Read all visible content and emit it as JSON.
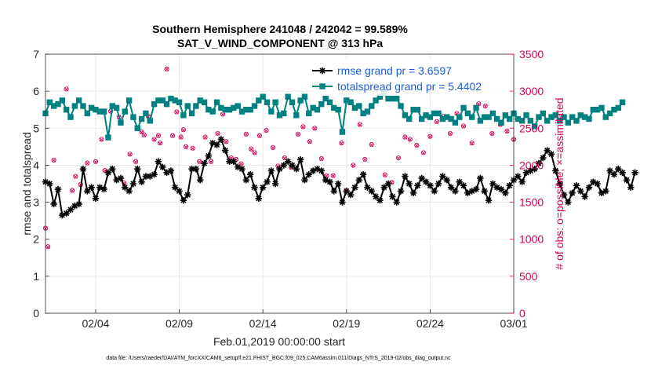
{
  "chart_data": {
    "type": "line",
    "title_line1": "Southern Hemisphere 241048 / 242042 = 99.589%",
    "title_line2": "SAT_V_WIND_COMPONENT @ 313 hPa",
    "xlabel": "Feb.01,2019 00:00:00 start",
    "ylabel_left": "rmse and totalspread",
    "ylabel_right": "# of obs: o=possible; ×=assimilated",
    "footnote": "data file: /Users/raeder/DAI/ATM_forcXX/CAM6_setup/f.e21.FHIST_BGC.f09_025.CAM6assim.011/Diags_NTrS_2019-02/obs_diag_output.nc",
    "xlim": [
      1,
      29
    ],
    "ylim_left": [
      0,
      7
    ],
    "ylim_right": [
      0,
      3500
    ],
    "xticks": [
      {
        "value": 4,
        "label": "02/04"
      },
      {
        "value": 9,
        "label": "02/09"
      },
      {
        "value": 14,
        "label": "02/14"
      },
      {
        "value": 19,
        "label": "02/19"
      },
      {
        "value": 24,
        "label": "02/24"
      },
      {
        "value": 29,
        "label": "03/01"
      }
    ],
    "yticks_left": [
      0,
      1,
      2,
      3,
      4,
      5,
      6,
      7
    ],
    "yticks_right": [
      0,
      500,
      1000,
      1500,
      2000,
      2500,
      3000,
      3500
    ],
    "grid": true,
    "legend_position": "top-right",
    "colors": {
      "rmse": "#000000",
      "totalspread": "#008080",
      "obs": "#d6005c",
      "legend_text": "#1a5fd6",
      "grid": "#e6e6e6"
    },
    "series": [
      {
        "name": "rmse grand pr = 3.6597",
        "axis": "left",
        "marker": "asterisk",
        "x_start": 1.0,
        "x_step": 0.25,
        "values": [
          3.55,
          3.5,
          2.95,
          3.35,
          2.65,
          2.7,
          2.8,
          2.9,
          2.95,
          3.9,
          3.3,
          3.4,
          3.1,
          3.4,
          3.35,
          3.8,
          3.9,
          3.6,
          3.65,
          3.4,
          3.3,
          3.5,
          3.9,
          3.55,
          3.7,
          3.7,
          3.75,
          4.1,
          3.95,
          3.8,
          3.85,
          3.4,
          3.3,
          3.05,
          3.2,
          3.9,
          3.9,
          3.6,
          4.05,
          4.25,
          4.6,
          4.55,
          4.7,
          4.4,
          4.1,
          4.1,
          3.95,
          3.9,
          3.6,
          3.75,
          3.4,
          3.1,
          3.4,
          3.55,
          3.85,
          3.5,
          3.9,
          4.0,
          4.1,
          4.0,
          3.9,
          4.15,
          3.6,
          3.75,
          3.85,
          3.9,
          3.85,
          3.6,
          3.55,
          3.3,
          3.5,
          3.0,
          3.3,
          3.2,
          3.4,
          3.6,
          3.75,
          3.4,
          3.3,
          3.15,
          3.05,
          3.4,
          3.5,
          3.15,
          3.0,
          3.3,
          3.7,
          3.5,
          3.25,
          3.45,
          3.65,
          3.55,
          3.45,
          3.3,
          3.5,
          3.7,
          3.6,
          3.4,
          3.3,
          3.55,
          3.45,
          3.25,
          3.3,
          3.35,
          3.65,
          3.3,
          3.05,
          3.5,
          3.4,
          3.35,
          3.25,
          3.45,
          3.6,
          3.7,
          3.55,
          3.8,
          3.85,
          3.9,
          4.05,
          4.2,
          4.4,
          4.3,
          3.85,
          3.5,
          3.2,
          3.0,
          3.25,
          3.45,
          3.3,
          3.15,
          3.4,
          3.55,
          3.5,
          3.25,
          3.3,
          3.85,
          3.75,
          3.9,
          3.8,
          3.6,
          3.4,
          3.8
        ]
      },
      {
        "name": "totalspread grand pr = 5.4402",
        "axis": "left",
        "marker": "square",
        "x_start": 1.0,
        "x_step": 0.25,
        "values": [
          5.4,
          5.7,
          5.6,
          5.65,
          5.75,
          5.5,
          5.3,
          5.6,
          5.75,
          5.6,
          5.4,
          5.55,
          5.5,
          5.45,
          5.45,
          4.75,
          5.6,
          5.55,
          5.15,
          5.45,
          5.75,
          5.3,
          5.0,
          5.25,
          5.4,
          5.2,
          5.65,
          5.75,
          5.75,
          5.65,
          5.8,
          5.75,
          5.7,
          5.35,
          5.6,
          5.4,
          5.6,
          5.75,
          5.7,
          5.5,
          5.45,
          5.7,
          5.55,
          5.5,
          5.5,
          5.55,
          5.6,
          5.45,
          5.5,
          5.5,
          5.6,
          5.75,
          5.85,
          5.7,
          5.45,
          5.7,
          5.35,
          5.4,
          5.85,
          5.7,
          5.35,
          5.75,
          5.85,
          5.4,
          5.55,
          5.5,
          5.65,
          5.8,
          5.7,
          5.55,
          5.5,
          4.9,
          5.75,
          5.7,
          5.55,
          5.6,
          5.4,
          5.45,
          5.6,
          5.75,
          5.85,
          5.95,
          5.8,
          5.8,
          5.8,
          5.6,
          5.35,
          5.25,
          5.5,
          5.5,
          5.25,
          5.35,
          5.3,
          5.4,
          5.4,
          5.25,
          5.3,
          5.25,
          5.15,
          5.3,
          5.55,
          5.4,
          5.3,
          5.55,
          5.2,
          5.3,
          5.3,
          5.4,
          5.25,
          5.15,
          5.35,
          5.25,
          5.4,
          5.25,
          5.2,
          5.35,
          5.2,
          5.05,
          5.3,
          5.4,
          5.2,
          5.3,
          5.35,
          5.2,
          5.3,
          5.15,
          5.3,
          5.2,
          5.35,
          5.3,
          5.25,
          5.5,
          5.5,
          5.55,
          5.3,
          5.4,
          5.5,
          5.55,
          5.7
        ]
      },
      {
        "name": "obs possible",
        "axis": "right",
        "marker": "circle",
        "x": [
          1.0,
          1.15,
          1.5,
          2.25,
          2.6,
          2.8,
          3.1,
          3.5,
          4.0,
          4.35,
          4.55,
          4.9,
          5.4,
          5.7,
          6.05,
          6.4,
          6.75,
          6.9,
          7.15,
          7.5,
          7.75,
          7.85,
          8.25,
          8.6,
          8.85,
          9.1,
          9.25,
          9.4,
          9.8,
          10.2,
          10.55,
          10.9,
          11.3,
          11.6,
          11.8,
          12.1,
          12.4,
          12.7,
          13.0,
          13.3,
          13.5,
          13.8,
          14.2,
          14.6,
          14.9,
          15.3,
          15.7,
          16.1,
          16.4,
          16.8,
          17.1,
          17.5,
          17.8,
          18.2,
          18.7,
          19.0,
          19.4,
          19.8,
          20.1,
          20.5,
          21.0,
          21.3,
          21.7,
          22.1,
          22.5,
          22.8,
          23.2,
          23.6,
          24.0,
          24.4,
          24.8,
          25.2,
          25.6,
          26.0,
          26.5,
          26.9,
          27.3,
          27.7,
          28.2,
          28.6,
          29.0
        ],
        "values": [
          1150,
          900,
          2070,
          3030,
          1660,
          1850,
          1740,
          2030,
          2050,
          2350,
          1930,
          2730,
          2650,
          1760,
          2150,
          2050,
          2450,
          2410,
          2660,
          2350,
          2400,
          2300,
          3300,
          2400,
          2720,
          2380,
          2480,
          2250,
          2230,
          2050,
          2380,
          2050,
          2430,
          2690,
          2320,
          2100,
          2080,
          2020,
          2420,
          2220,
          2170,
          2400,
          2470,
          2240,
          1990,
          2100,
          1970,
          2420,
          2520,
          2320,
          2500,
          2090,
          1860,
          1860,
          2300,
          1660,
          2000,
          2550,
          2080,
          2280,
          3230,
          1870,
          1770,
          2100,
          2380,
          2350,
          2270,
          2170,
          2390,
          2590,
          2660,
          2430,
          2700,
          2530,
          2300,
          2830,
          2800,
          2430,
          2550,
          2460,
          2350
        ]
      },
      {
        "name": "obs assimilated",
        "axis": "right",
        "marker": "cross",
        "x": [
          1.0,
          1.15,
          1.5,
          2.25,
          2.6,
          2.8,
          3.1,
          3.5,
          4.0,
          4.35,
          4.55,
          4.9,
          5.4,
          5.7,
          6.05,
          6.4,
          6.75,
          6.9,
          7.15,
          7.5,
          7.75,
          7.85,
          8.25,
          8.6,
          8.85,
          9.1,
          9.25,
          9.4,
          9.8,
          10.2,
          10.55,
          10.9,
          11.3,
          11.6,
          11.8,
          12.1,
          12.4,
          12.7,
          13.0,
          13.3,
          13.5,
          13.8,
          14.2,
          14.6,
          14.9,
          15.3,
          15.7,
          16.1,
          16.4,
          16.8,
          17.1,
          17.5,
          17.8,
          18.2,
          18.7,
          19.0,
          19.4,
          19.8,
          20.1,
          20.5,
          21.0,
          21.3,
          21.7,
          22.1,
          22.5,
          22.8,
          23.2,
          23.6,
          24.0,
          24.4,
          24.8,
          25.2,
          25.6,
          26.0,
          26.5,
          26.9,
          27.3,
          27.7,
          28.2,
          28.6,
          29.0
        ],
        "values": [
          1145,
          895,
          2065,
          3025,
          1655,
          1845,
          1735,
          2025,
          2045,
          2345,
          1925,
          2725,
          2645,
          1755,
          2145,
          2045,
          2445,
          2405,
          2655,
          2345,
          2395,
          2295,
          3295,
          2395,
          2715,
          2375,
          2475,
          2245,
          2225,
          2045,
          2375,
          2045,
          2425,
          2685,
          2315,
          2095,
          2075,
          2015,
          2415,
          2215,
          2165,
          2395,
          2465,
          2235,
          1985,
          2095,
          1965,
          2415,
          2515,
          2315,
          2495,
          2085,
          1855,
          1855,
          2295,
          1655,
          1995,
          2545,
          2075,
          2275,
          3225,
          1865,
          1765,
          2095,
          2375,
          2345,
          2265,
          2165,
          2385,
          2585,
          2655,
          2425,
          2695,
          2525,
          2295,
          2825,
          2795,
          2425,
          2545,
          2455,
          2345
        ]
      }
    ]
  }
}
